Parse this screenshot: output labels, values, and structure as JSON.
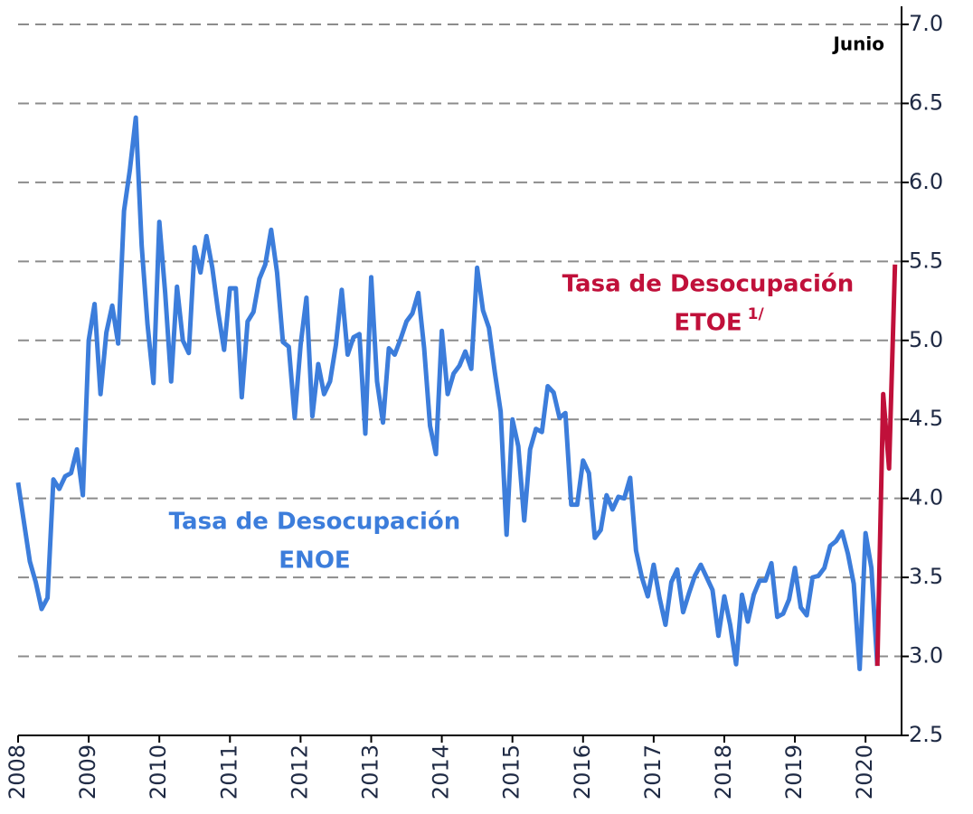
{
  "chart_data": {
    "type": "line",
    "xlim": [
      2008,
      2020.51
    ],
    "xticks": [
      2008,
      2009,
      2010,
      2011,
      2012,
      2013,
      2014,
      2015,
      2016,
      2017,
      2018,
      2019,
      2020
    ],
    "ylim": [
      2.5,
      7.0
    ],
    "yticks": [
      {
        "value": 7.0,
        "label": "7.0"
      },
      6.5,
      {
        "value": 6.0,
        "label": "6.0"
      },
      5.5,
      {
        "value": 5.0,
        "label": "5.0"
      },
      4.5,
      {
        "value": 4.0,
        "label": "4.0"
      },
      3.5,
      {
        "value": 3.0,
        "label": "3.0"
      },
      2.5
    ],
    "grid": true,
    "series": [
      {
        "color": "#3c7ddb",
        "x": [
          2008.0,
          2008.083,
          2008.167,
          2008.25,
          2008.333,
          2008.417,
          2008.5,
          2008.583,
          2008.667,
          2008.75,
          2008.833,
          2008.917,
          2009.0,
          2009.083,
          2009.167,
          2009.25,
          2009.333,
          2009.417,
          2009.5,
          2009.583,
          2009.667,
          2009.75,
          2009.833,
          2009.917,
          2010.0,
          2010.083,
          2010.167,
          2010.25,
          2010.333,
          2010.417,
          2010.5,
          2010.583,
          2010.667,
          2010.75,
          2010.833,
          2010.917,
          2011.0,
          2011.083,
          2011.167,
          2011.25,
          2011.333,
          2011.417,
          2011.5,
          2011.583,
          2011.667,
          2011.75,
          2011.833,
          2011.917,
          2012.0,
          2012.083,
          2012.167,
          2012.25,
          2012.333,
          2012.417,
          2012.5,
          2012.583,
          2012.667,
          2012.75,
          2012.833,
          2012.917,
          2013.0,
          2013.083,
          2013.167,
          2013.25,
          2013.333,
          2013.417,
          2013.5,
          2013.583,
          2013.667,
          2013.75,
          2013.833,
          2013.917,
          2014.0,
          2014.083,
          2014.167,
          2014.25,
          2014.333,
          2014.417,
          2014.5,
          2014.583,
          2014.667,
          2014.75,
          2014.833,
          2014.917,
          2015.0,
          2015.083,
          2015.167,
          2015.25,
          2015.333,
          2015.417,
          2015.5,
          2015.583,
          2015.667,
          2015.75,
          2015.833,
          2015.917,
          2016.0,
          2016.083,
          2016.167,
          2016.25,
          2016.333,
          2016.417,
          2016.5,
          2016.583,
          2016.667,
          2016.75,
          2016.833,
          2016.917,
          2017.0,
          2017.083,
          2017.167,
          2017.25,
          2017.333,
          2017.417,
          2017.5,
          2017.583,
          2017.667,
          2017.75,
          2017.833,
          2017.917,
          2018.0,
          2018.083,
          2018.167,
          2018.25,
          2018.333,
          2018.417,
          2018.5,
          2018.583,
          2018.667,
          2018.75,
          2018.833,
          2018.917,
          2019.0,
          2019.083,
          2019.167,
          2019.25,
          2019.333,
          2019.417,
          2019.5,
          2019.583,
          2019.667,
          2019.75,
          2019.833,
          2019.917,
          2020.0,
          2020.083,
          2020.167
        ],
        "values": [
          4.1,
          3.85,
          3.6,
          3.47,
          3.3,
          3.37,
          4.12,
          4.06,
          4.14,
          4.16,
          4.31,
          4.02,
          5.0,
          5.23,
          4.66,
          5.05,
          5.22,
          4.98,
          5.82,
          6.08,
          6.41,
          5.6,
          5.1,
          4.73,
          5.75,
          5.3,
          4.74,
          5.34,
          5.0,
          4.92,
          5.59,
          5.43,
          5.66,
          5.46,
          5.18,
          4.94,
          5.33,
          5.33,
          4.64,
          5.12,
          5.18,
          5.39,
          5.48,
          5.7,
          5.43,
          4.99,
          4.96,
          4.51,
          4.97,
          5.27,
          4.52,
          4.85,
          4.66,
          4.74,
          4.97,
          5.32,
          4.91,
          5.02,
          5.04,
          4.41,
          5.4,
          4.74,
          4.48,
          4.95,
          4.91,
          5.01,
          5.12,
          5.17,
          5.3,
          4.95,
          4.46,
          4.28,
          5.06,
          4.66,
          4.79,
          4.84,
          4.93,
          4.82,
          5.46,
          5.19,
          5.08,
          4.8,
          4.55,
          3.77,
          4.5,
          4.33,
          3.86,
          4.31,
          4.44,
          4.42,
          4.71,
          4.67,
          4.51,
          4.54,
          3.96,
          3.96,
          4.24,
          4.16,
          3.75,
          3.8,
          4.02,
          3.93,
          4.01,
          4.0,
          4.13,
          3.67,
          3.5,
          3.38,
          3.58,
          3.37,
          3.2,
          3.47,
          3.55,
          3.28,
          3.4,
          3.51,
          3.58,
          3.5,
          3.42,
          3.13,
          3.38,
          3.2,
          2.95,
          3.39,
          3.22,
          3.39,
          3.48,
          3.48,
          3.59,
          3.25,
          3.27,
          3.36,
          3.56,
          3.31,
          3.26,
          3.5,
          3.51,
          3.56,
          3.7,
          3.73,
          3.79,
          3.65,
          3.46,
          2.92,
          3.78,
          3.56,
          2.94
        ]
      },
      {
        "color": "#c0103a",
        "x": [
          2020.167,
          2020.25,
          2020.333,
          2020.417
        ],
        "values": [
          2.94,
          4.66,
          4.19,
          5.48
        ]
      }
    ],
    "annotations": [
      {
        "lines": [
          "Tasa de Desocupación",
          "ENOE"
        ],
        "color": "#3c7ddb"
      },
      {
        "lines": [
          "Tasa de Desocupación",
          "ETOE"
        ],
        "sup": "1/",
        "color": "#c0103a"
      },
      {
        "text": "Junio"
      }
    ]
  }
}
